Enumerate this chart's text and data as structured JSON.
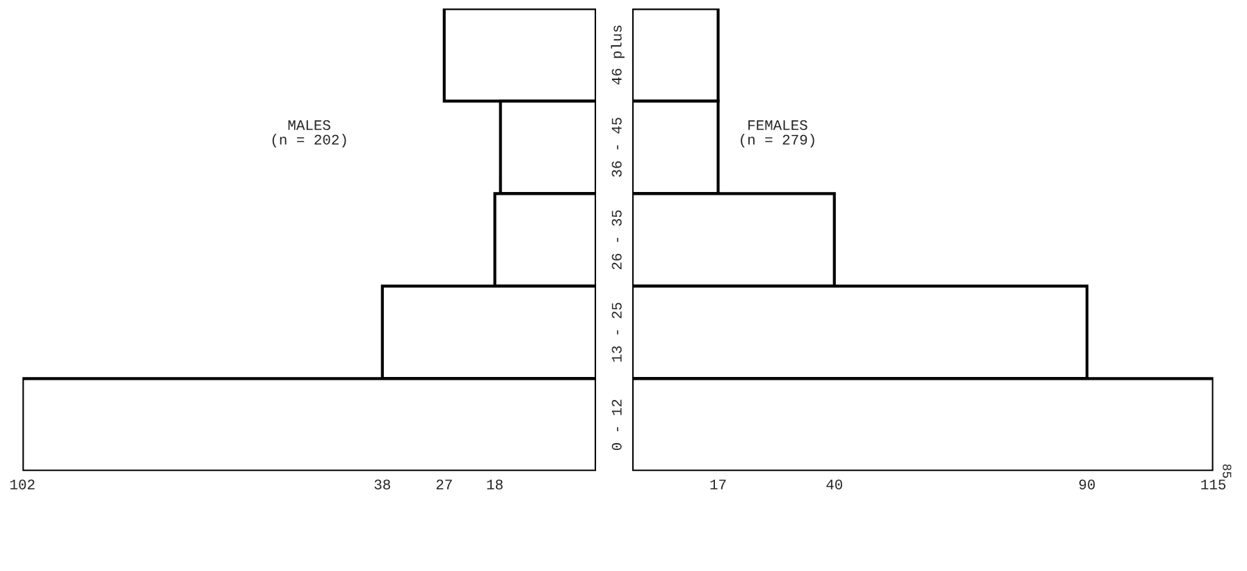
{
  "chart_data": [
    {
      "type": "bar",
      "orientation": "horizontal",
      "categories": [
        null,
        null,
        null,
        null,
        null
      ],
      "series": [
        {
          "color": "#ffffff",
          "values": [
            27,
            17,
            18,
            38,
            102
          ]
        }
      ],
      "xlim": [
        102,
        0
      ],
      "xticks": [
        102,
        38,
        27,
        18
      ],
      "grid": false,
      "legend": false,
      "tick_labels": "x",
      "annotations": [
        "MALES\n(n = 202)"
      ]
    },
    {
      "type": "bar",
      "orientation": "horizontal",
      "categories": [
        "46 plus",
        "36 - 45",
        "26 - 35",
        "13 - 25",
        "0 - 12"
      ],
      "series": [
        {
          "color": "#ffffff",
          "values": [
            17,
            17,
            40,
            90,
            115
          ]
        }
      ],
      "xlim": [
        0,
        115
      ],
      "xticks": [
        17,
        40,
        90,
        115
      ],
      "grid": false,
      "legend": false,
      "annotations": [
        "FEMALES\n(n = 279)",
        "85"
      ]
    }
  ]
}
